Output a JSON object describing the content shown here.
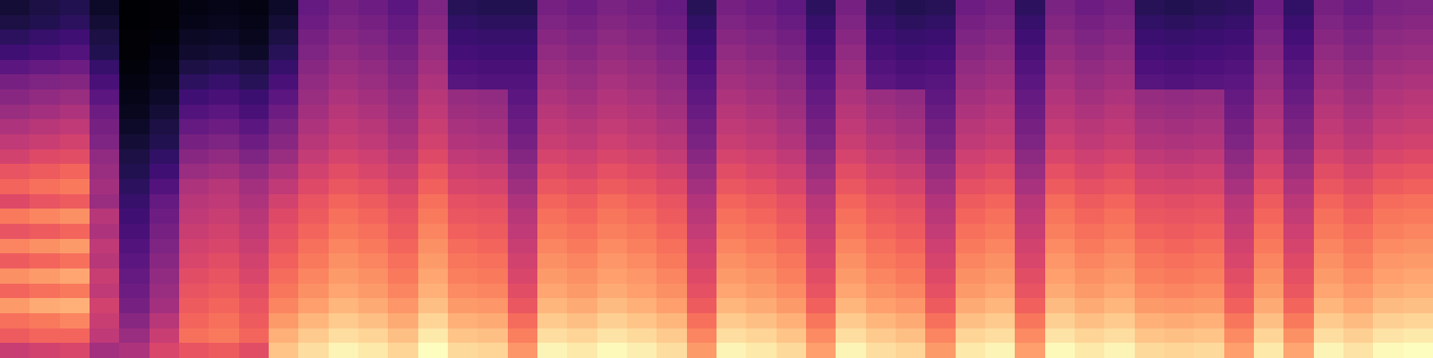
{
  "chart_data": {
    "type": "heatmap",
    "tick_labels": false,
    "cells": [
      [
        10,
        12,
        14,
        8,
        1,
        2,
        4,
        5,
        4,
        8,
        28,
        32,
        30,
        26,
        34,
        15,
        14,
        14,
        32,
        30,
        33,
        31,
        28,
        15,
        32,
        30,
        27,
        16,
        32,
        16,
        14,
        15,
        30,
        32,
        16,
        33,
        30,
        32,
        15,
        14,
        15,
        16,
        30,
        17,
        32,
        29,
        33,
        34
      ],
      [
        12,
        14,
        16,
        10,
        1,
        2,
        5,
        6,
        5,
        10,
        30,
        34,
        32,
        28,
        36,
        17,
        16,
        16,
        34,
        32,
        35,
        33,
        30,
        17,
        34,
        32,
        29,
        18,
        34,
        18,
        16,
        17,
        32,
        34,
        18,
        35,
        32,
        34,
        17,
        16,
        17,
        18,
        32,
        19,
        34,
        31,
        35,
        36
      ],
      [
        16,
        18,
        20,
        12,
        2,
        3,
        7,
        8,
        6,
        12,
        32,
        36,
        34,
        30,
        38,
        19,
        18,
        18,
        36,
        34,
        37,
        35,
        32,
        19,
        36,
        34,
        31,
        20,
        36,
        20,
        18,
        19,
        34,
        36,
        20,
        37,
        34,
        36,
        19,
        18,
        19,
        20,
        34,
        21,
        36,
        33,
        37,
        38
      ],
      [
        20,
        22,
        24,
        14,
        2,
        4,
        9,
        10,
        8,
        15,
        34,
        38,
        36,
        32,
        40,
        21,
        20,
        20,
        38,
        36,
        39,
        37,
        34,
        21,
        38,
        36,
        33,
        22,
        38,
        22,
        20,
        21,
        36,
        38,
        22,
        39,
        36,
        38,
        21,
        20,
        21,
        22,
        36,
        23,
        38,
        35,
        39,
        40
      ],
      [
        26,
        28,
        30,
        18,
        3,
        5,
        12,
        14,
        12,
        18,
        36,
        40,
        38,
        34,
        42,
        23,
        22,
        22,
        40,
        38,
        41,
        39,
        36,
        23,
        40,
        38,
        35,
        24,
        40,
        24,
        22,
        23,
        38,
        40,
        24,
        41,
        38,
        40,
        23,
        22,
        23,
        24,
        38,
        25,
        40,
        37,
        41,
        42
      ],
      [
        32,
        34,
        35,
        22,
        4,
        6,
        16,
        18,
        15,
        22,
        38,
        42,
        40,
        36,
        44,
        25,
        24,
        24,
        42,
        40,
        43,
        41,
        38,
        25,
        42,
        40,
        37,
        26,
        42,
        26,
        24,
        25,
        40,
        42,
        26,
        43,
        40,
        42,
        25,
        24,
        25,
        26,
        40,
        27,
        42,
        39,
        43,
        44
      ],
      [
        36,
        38,
        40,
        26,
        5,
        8,
        20,
        22,
        19,
        26,
        40,
        44,
        42,
        38,
        46,
        39,
        38,
        26,
        44,
        42,
        45,
        43,
        40,
        27,
        44,
        42,
        39,
        28,
        44,
        40,
        38,
        27,
        42,
        44,
        28,
        45,
        42,
        44,
        39,
        38,
        39,
        28,
        42,
        29,
        44,
        41,
        45,
        46
      ],
      [
        40,
        42,
        44,
        30,
        6,
        10,
        24,
        26,
        22,
        30,
        42,
        46,
        44,
        40,
        48,
        41,
        40,
        28,
        46,
        44,
        47,
        45,
        42,
        29,
        46,
        44,
        41,
        30,
        46,
        42,
        40,
        29,
        44,
        46,
        30,
        47,
        44,
        46,
        41,
        40,
        41,
        30,
        44,
        31,
        46,
        43,
        47,
        48
      ],
      [
        44,
        46,
        48,
        32,
        8,
        12,
        28,
        30,
        26,
        33,
        44,
        48,
        46,
        42,
        50,
        43,
        42,
        30,
        48,
        46,
        49,
        47,
        44,
        31,
        48,
        46,
        43,
        32,
        48,
        44,
        42,
        31,
        46,
        48,
        32,
        49,
        46,
        48,
        43,
        42,
        43,
        32,
        46,
        33,
        48,
        45,
        49,
        50
      ],
      [
        48,
        50,
        52,
        34,
        10,
        14,
        32,
        34,
        30,
        36,
        46,
        50,
        48,
        44,
        52,
        45,
        44,
        32,
        50,
        48,
        51,
        49,
        46,
        33,
        50,
        48,
        45,
        34,
        50,
        46,
        44,
        33,
        48,
        50,
        34,
        51,
        48,
        50,
        45,
        44,
        45,
        34,
        48,
        35,
        50,
        47,
        51,
        52
      ],
      [
        52,
        55,
        56,
        38,
        12,
        17,
        36,
        38,
        34,
        40,
        49,
        53,
        51,
        47,
        55,
        48,
        47,
        35,
        53,
        51,
        54,
        52,
        49,
        36,
        53,
        51,
        48,
        37,
        53,
        49,
        47,
        36,
        51,
        53,
        37,
        54,
        51,
        53,
        48,
        47,
        48,
        37,
        51,
        38,
        53,
        50,
        54,
        55
      ],
      [
        58,
        60,
        62,
        40,
        14,
        20,
        40,
        42,
        38,
        44,
        52,
        56,
        54,
        50,
        58,
        51,
        50,
        38,
        56,
        54,
        57,
        55,
        52,
        39,
        56,
        54,
        51,
        40,
        56,
        52,
        50,
        39,
        54,
        56,
        40,
        57,
        54,
        56,
        51,
        50,
        51,
        40,
        54,
        41,
        56,
        53,
        57,
        58
      ],
      [
        62,
        64,
        66,
        42,
        16,
        24,
        44,
        46,
        42,
        48,
        55,
        59,
        57,
        53,
        61,
        54,
        53,
        41,
        59,
        57,
        60,
        58,
        55,
        42,
        59,
        57,
        54,
        43,
        59,
        55,
        53,
        42,
        57,
        59,
        43,
        60,
        57,
        59,
        54,
        53,
        54,
        43,
        57,
        44,
        59,
        56,
        60,
        61
      ],
      [
        55,
        58,
        60,
        40,
        18,
        28,
        46,
        48,
        44,
        52,
        58,
        62,
        60,
        56,
        64,
        57,
        56,
        44,
        62,
        60,
        63,
        61,
        58,
        45,
        62,
        60,
        57,
        46,
        62,
        58,
        56,
        45,
        60,
        62,
        46,
        63,
        60,
        62,
        57,
        56,
        57,
        46,
        60,
        47,
        62,
        59,
        63,
        64
      ],
      [
        66,
        68,
        70,
        46,
        20,
        30,
        48,
        50,
        46,
        55,
        60,
        64,
        62,
        58,
        66,
        59,
        58,
        46,
        64,
        62,
        65,
        63,
        60,
        47,
        64,
        62,
        59,
        48,
        64,
        60,
        58,
        47,
        62,
        64,
        48,
        65,
        62,
        64,
        59,
        58,
        59,
        48,
        62,
        49,
        64,
        61,
        65,
        66
      ],
      [
        58,
        60,
        62,
        44,
        22,
        32,
        50,
        52,
        48,
        57,
        62,
        66,
        64,
        60,
        68,
        61,
        60,
        48,
        66,
        64,
        67,
        65,
        62,
        49,
        66,
        64,
        61,
        50,
        66,
        62,
        60,
        49,
        64,
        66,
        50,
        67,
        64,
        66,
        61,
        60,
        61,
        50,
        64,
        51,
        66,
        63,
        67,
        68
      ],
      [
        68,
        70,
        72,
        48,
        24,
        34,
        52,
        54,
        50,
        59,
        64,
        68,
        66,
        62,
        70,
        63,
        62,
        50,
        68,
        66,
        69,
        67,
        64,
        51,
        68,
        66,
        63,
        52,
        68,
        64,
        62,
        51,
        66,
        68,
        52,
        69,
        66,
        68,
        63,
        62,
        63,
        52,
        66,
        53,
        68,
        65,
        69,
        70
      ],
      [
        60,
        62,
        64,
        46,
        26,
        36,
        54,
        56,
        52,
        61,
        66,
        70,
        68,
        64,
        72,
        65,
        64,
        52,
        70,
        68,
        71,
        69,
        66,
        53,
        70,
        68,
        65,
        54,
        70,
        66,
        64,
        53,
        68,
        70,
        54,
        71,
        68,
        70,
        65,
        64,
        65,
        54,
        68,
        55,
        70,
        67,
        71,
        72
      ],
      [
        70,
        72,
        74,
        50,
        28,
        38,
        56,
        58,
        54,
        63,
        68,
        72,
        70,
        66,
        74,
        67,
        66,
        54,
        72,
        70,
        73,
        71,
        68,
        55,
        72,
        70,
        67,
        56,
        72,
        68,
        66,
        55,
        70,
        72,
        56,
        73,
        70,
        72,
        67,
        66,
        67,
        56,
        70,
        57,
        72,
        69,
        73,
        74
      ],
      [
        62,
        64,
        66,
        48,
        30,
        40,
        58,
        60,
        56,
        65,
        70,
        74,
        72,
        68,
        76,
        69,
        68,
        56,
        74,
        72,
        75,
        73,
        70,
        57,
        74,
        72,
        69,
        58,
        74,
        70,
        68,
        57,
        72,
        74,
        58,
        75,
        72,
        74,
        69,
        68,
        69,
        58,
        72,
        59,
        74,
        71,
        75,
        76
      ],
      [
        72,
        75,
        76,
        52,
        32,
        42,
        60,
        62,
        58,
        68,
        73,
        77,
        75,
        71,
        79,
        72,
        71,
        59,
        77,
        75,
        78,
        76,
        73,
        60,
        77,
        75,
        72,
        61,
        77,
        73,
        71,
        60,
        75,
        77,
        61,
        78,
        75,
        77,
        72,
        71,
        72,
        61,
        75,
        62,
        77,
        74,
        78,
        79
      ],
      [
        64,
        66,
        68,
        50,
        36,
        46,
        62,
        64,
        60,
        72,
        77,
        81,
        79,
        75,
        83,
        76,
        75,
        63,
        81,
        79,
        82,
        80,
        77,
        64,
        81,
        79,
        76,
        65,
        81,
        77,
        75,
        64,
        79,
        81,
        65,
        82,
        79,
        81,
        76,
        75,
        76,
        65,
        79,
        66,
        81,
        78,
        82,
        83
      ],
      [
        60,
        62,
        62,
        48,
        40,
        50,
        64,
        66,
        62,
        76,
        81,
        85,
        83,
        79,
        87,
        80,
        79,
        67,
        85,
        83,
        86,
        84,
        81,
        68,
        85,
        83,
        80,
        69,
        85,
        81,
        79,
        68,
        83,
        85,
        69,
        86,
        83,
        85,
        80,
        79,
        80,
        69,
        83,
        70,
        85,
        82,
        86,
        87
      ],
      [
        50,
        52,
        54,
        42,
        44,
        54,
        58,
        60,
        56,
        80,
        85,
        89,
        87,
        83,
        91,
        84,
        83,
        71,
        89,
        87,
        90,
        88,
        85,
        72,
        89,
        87,
        84,
        73,
        89,
        85,
        83,
        72,
        87,
        89,
        73,
        90,
        87,
        89,
        84,
        83,
        84,
        73,
        87,
        74,
        89,
        86,
        90,
        91
      ]
    ]
  }
}
